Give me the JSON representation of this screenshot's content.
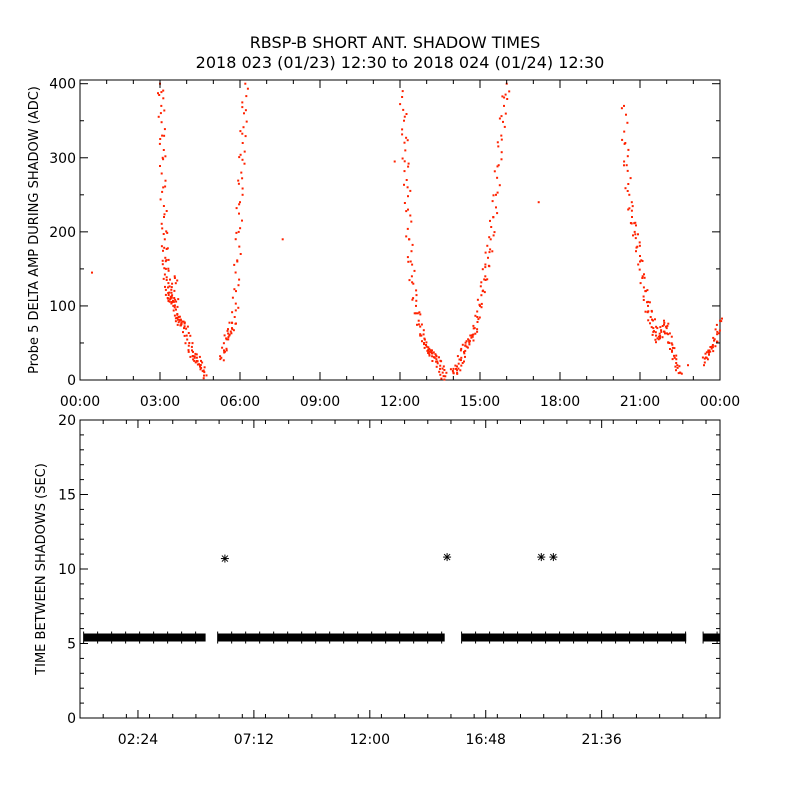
{
  "chart_data": [
    {
      "type": "scatter",
      "title": "RBSP-B SHORT ANT. SHADOW TIMES",
      "subtitle": "2018 023 (01/23) 12:30 to 2018 024 (01/24) 12:30",
      "ylabel": "Probe 5 DELTA AMP DURING SHADOW (ADC)",
      "xlim": [
        0,
        24
      ],
      "ylim": [
        0,
        405
      ],
      "x_tick_labels": [
        "00:00",
        "03:00",
        "06:00",
        "09:00",
        "12:00",
        "15:00",
        "18:00",
        "21:00",
        "00:00"
      ],
      "x_ticks": [
        0,
        3,
        6,
        9,
        12,
        15,
        18,
        21,
        24
      ],
      "y_ticks": [
        0,
        100,
        200,
        300,
        400
      ],
      "marker_color": "#ff2200",
      "series": [
        {
          "x": [
            3.0,
            3.05,
            3.08,
            3.1,
            3.12,
            3.15,
            3.18,
            3.2,
            3.22,
            3.25,
            3.3,
            3.35,
            3.4,
            3.45,
            3.5,
            3.55,
            3.6,
            3.65,
            3.7,
            3.75,
            3.8,
            3.9,
            4.0,
            4.1,
            4.2,
            4.3,
            4.4,
            4.5,
            4.6,
            4.65
          ],
          "y": [
            400,
            370,
            330,
            300,
            260,
            220,
            190,
            165,
            150,
            135,
            125,
            118,
            112,
            105,
            100,
            140,
            95,
            88,
            85,
            80,
            75,
            70,
            60,
            50,
            40,
            32,
            25,
            18,
            12,
            6
          ]
        },
        {
          "x": [
            5.3,
            5.4,
            5.5,
            5.6,
            5.7,
            5.8,
            5.85,
            5.9,
            5.95,
            6.0,
            6.05,
            6.1,
            6.15,
            6.2
          ],
          "y": [
            30,
            40,
            55,
            60,
            70,
            85,
            120,
            160,
            200,
            240,
            280,
            320,
            360,
            400
          ]
        },
        {
          "x": [
            12.1,
            12.15,
            12.2,
            12.25,
            12.3,
            12.35,
            12.4,
            12.5,
            12.6,
            12.7,
            12.8,
            12.9,
            13.0,
            13.1,
            13.2,
            13.3,
            13.4,
            13.5,
            13.6,
            13.7
          ],
          "y": [
            390,
            350,
            310,
            270,
            230,
            190,
            160,
            130,
            100,
            80,
            60,
            50,
            45,
            42,
            40,
            30,
            25,
            15,
            10,
            5
          ]
        },
        {
          "x": [
            14.0,
            14.1,
            14.2,
            14.3,
            14.4,
            14.5,
            14.6,
            14.7,
            14.8,
            14.9,
            15.0,
            15.1,
            15.2,
            15.3,
            15.4,
            15.5,
            15.6,
            15.7,
            15.8,
            15.9,
            16.0
          ],
          "y": [
            10,
            15,
            22,
            30,
            38,
            45,
            52,
            60,
            70,
            85,
            100,
            120,
            140,
            165,
            190,
            220,
            250,
            290,
            330,
            370,
            400
          ]
        },
        {
          "x": [
            20.4,
            20.45,
            20.5,
            20.6,
            20.7,
            20.8,
            20.9,
            21.0,
            21.1,
            21.2,
            21.3,
            21.4,
            21.5,
            21.6,
            21.7,
            21.8,
            21.9,
            22.0,
            22.1,
            22.2,
            22.3,
            22.4,
            22.5
          ],
          "y": [
            370,
            320,
            290,
            250,
            220,
            200,
            180,
            160,
            140,
            120,
            100,
            85,
            70,
            60,
            55,
            65,
            80,
            70,
            50,
            40,
            30,
            20,
            10
          ]
        },
        {
          "x": [
            23.4,
            23.5,
            23.6,
            23.7,
            23.8,
            23.9,
            24.0
          ],
          "y": [
            20,
            30,
            40,
            45,
            55,
            65,
            80
          ]
        },
        {
          "x": [
            0.45,
            7.6,
            11.8,
            17.2,
            3.4,
            4.3,
            4.5,
            5.5,
            13.1,
            14.4,
            21.5,
            22.8
          ],
          "y": [
            145,
            190,
            295,
            240,
            110,
            30,
            20,
            40,
            35,
            25,
            65,
            20
          ]
        }
      ]
    },
    {
      "type": "scatter",
      "ylabel": "TIME BETWEEN SHADOWS (SEC)",
      "xlim": [
        0,
        26.5
      ],
      "ylim": [
        0,
        20
      ],
      "x_tick_labels": [
        "02:24",
        "07:12",
        "12:00",
        "16:48",
        "21:36"
      ],
      "x_ticks": [
        2.4,
        7.2,
        12.0,
        16.8,
        21.6
      ],
      "y_ticks": [
        0,
        5,
        10,
        15,
        20
      ],
      "marker_color": "#000000",
      "segments": [
        {
          "x_start": 0.15,
          "x_end": 5.2,
          "y": 5.4
        },
        {
          "x_start": 5.7,
          "x_end": 15.1,
          "y": 5.4
        },
        {
          "x_start": 15.8,
          "x_end": 25.1,
          "y": 5.4
        },
        {
          "x_start": 25.8,
          "x_end": 26.5,
          "y": 5.4
        }
      ],
      "outliers": {
        "x": [
          6.0,
          15.2,
          19.1,
          19.6
        ],
        "y": [
          10.7,
          10.8,
          10.8,
          10.8
        ]
      }
    }
  ]
}
